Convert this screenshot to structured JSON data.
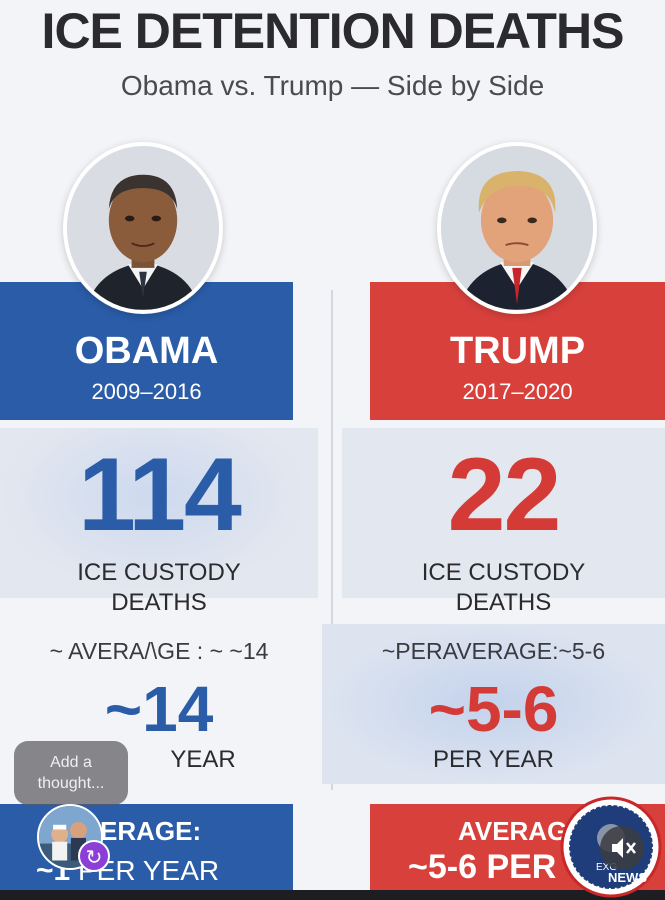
{
  "title": "ICE DETENTION DEATHS",
  "subtitle": "Obama vs. Trump — Side by Side",
  "left": {
    "name": "OBAMA",
    "years": "2009–2016",
    "deaths": "114",
    "deaths_label_line1": "ICE CUSTODY",
    "deaths_label_line2": "DEATHS",
    "average_line": "~ AVERA/\\GE : ~ ~14",
    "average_value": "~14",
    "per_year": "YEAR",
    "bottom_line1": "ERAGE:",
    "bottom_line2": "PER YEAR",
    "bottom_prefix": "~1"
  },
  "right": {
    "name": "TRUMP",
    "years": "2017–2020",
    "deaths": "22",
    "deaths_label_line1": "ICE CUSTODY",
    "deaths_label_line2": "DEATHS",
    "average_line": "~PERAVERAGE:~5-6",
    "average_value": "~5-6",
    "per_year": "PER YEAR",
    "bottom_line1": "AVERAG",
    "bottom_line2": "~5-6 PER"
  },
  "overlay": {
    "thought_line1": "Add a",
    "thought_line2": "thought...",
    "seal_text_top": "EXG",
    "seal_text_bottom": "NEWS"
  },
  "colors": {
    "blue": "#2a5ca8",
    "red": "#d8403c",
    "background": "#f3f4f7"
  },
  "icons": [
    "repost-icon",
    "mute-icon",
    "news-seal-logo"
  ]
}
